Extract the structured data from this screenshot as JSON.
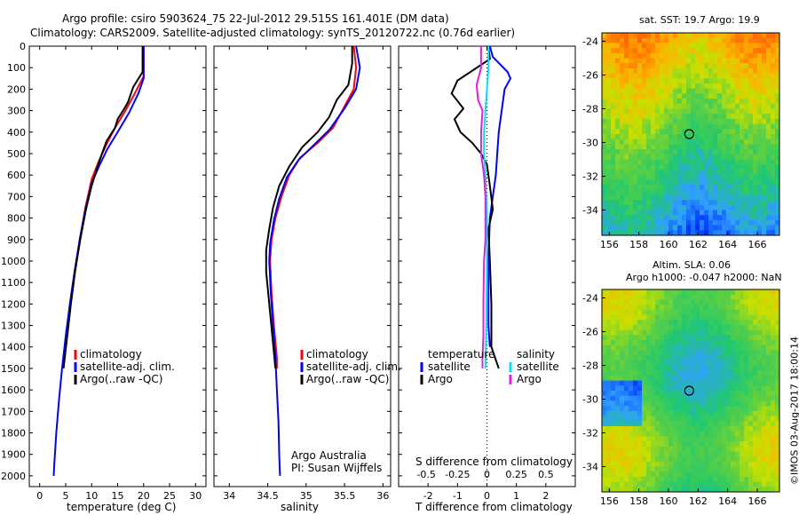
{
  "header": {
    "line1": "Argo profile: csiro 5903624_75 22-Jul-2012 29.515S 161.401E (DM data)",
    "line2": "Climatology: CARS2009. Satellite-adjusted climatology: synTS_20120722.nc (0.76d earlier)"
  },
  "colors": {
    "climatology": "#ff0000",
    "satellite": "#0000ff",
    "argo": "#000000",
    "sal_satellite": "#00e0ff",
    "sal_argo": "#e020e0"
  },
  "chart_data": [
    {
      "type": "line",
      "id": "temperature",
      "xlabel": "temperature (deg C)",
      "xlim": [
        -2,
        32
      ],
      "xticks": [
        0,
        5,
        10,
        15,
        20,
        25,
        30
      ],
      "ylim": [
        0,
        2050
      ],
      "yticks": [
        0,
        100,
        200,
        300,
        400,
        500,
        600,
        700,
        800,
        900,
        1000,
        1100,
        1200,
        1300,
        1400,
        1500,
        1600,
        1700,
        1800,
        1900,
        2000
      ],
      "legend": [
        "climatology",
        "satellite-adj. clim.",
        "Argo(..raw -QC)"
      ],
      "series": [
        {
          "name": "climatology",
          "color": "#ff0000",
          "points": [
            [
              20,
              0
            ],
            [
              20,
              140
            ],
            [
              18.3,
              220
            ],
            [
              16.5,
              300
            ],
            [
              14.5,
              380
            ],
            [
              12.8,
              460
            ],
            [
              11.3,
              540
            ],
            [
              10,
              620
            ],
            [
              8.8,
              750
            ],
            [
              7.7,
              900
            ],
            [
              6.8,
              1050
            ],
            [
              6,
              1200
            ],
            [
              5.3,
              1350
            ],
            [
              4.5,
              1500
            ]
          ]
        },
        {
          "name": "satellite-adj. clim.",
          "color": "#0000ff",
          "points": [
            [
              20,
              0
            ],
            [
              20,
              150
            ],
            [
              19,
              220
            ],
            [
              17.2,
              310
            ],
            [
              15,
              400
            ],
            [
              13,
              480
            ],
            [
              11.4,
              560
            ],
            [
              10,
              640
            ],
            [
              8.8,
              760
            ],
            [
              7.7,
              900
            ],
            [
              6.7,
              1050
            ],
            [
              5.8,
              1200
            ],
            [
              5,
              1350
            ],
            [
              4.3,
              1500
            ],
            [
              3.7,
              1650
            ],
            [
              3.2,
              1800
            ],
            [
              2.8,
              1950
            ],
            [
              2.7,
              2000
            ]
          ]
        },
        {
          "name": "Argo(..raw -QC)",
          "color": "#000000",
          "points": [
            [
              19.8,
              0
            ],
            [
              19.8,
              120
            ],
            [
              18,
              190
            ],
            [
              17,
              260
            ],
            [
              16.3,
              290
            ],
            [
              15,
              340
            ],
            [
              14.5,
              380
            ],
            [
              12.9,
              440
            ],
            [
              12,
              500
            ],
            [
              11,
              570
            ],
            [
              10,
              650
            ],
            [
              8.9,
              760
            ],
            [
              7.8,
              900
            ],
            [
              6.8,
              1050
            ],
            [
              6,
              1200
            ],
            [
              5.3,
              1350
            ],
            [
              4.6,
              1500
            ]
          ]
        }
      ]
    },
    {
      "type": "line",
      "id": "salinity",
      "xlabel": "salinity",
      "xlim": [
        33.8,
        36.1
      ],
      "xticks": [
        34,
        34.5,
        35,
        35.5,
        36
      ],
      "ylim": [
        0,
        2050
      ],
      "legend": [
        "climatology",
        "satellite-adj. clim.",
        "Argo(..raw -QC)"
      ],
      "annotation": [
        "Argo Australia",
        "PI: Susan Wijffels"
      ],
      "series": [
        {
          "name": "climatology",
          "color": "#ff0000",
          "points": [
            [
              35.62,
              0
            ],
            [
              35.65,
              100
            ],
            [
              35.62,
              200
            ],
            [
              35.5,
              280
            ],
            [
              35.35,
              380
            ],
            [
              35.15,
              450
            ],
            [
              34.92,
              520
            ],
            [
              34.78,
              600
            ],
            [
              34.68,
              700
            ],
            [
              34.6,
              800
            ],
            [
              34.55,
              900
            ],
            [
              34.53,
              1000
            ],
            [
              34.55,
              1150
            ],
            [
              34.58,
              1300
            ],
            [
              34.62,
              1450
            ],
            [
              34.62,
              1500
            ]
          ]
        },
        {
          "name": "satellite-adj. clim.",
          "color": "#0000ff",
          "points": [
            [
              35.65,
              0
            ],
            [
              35.7,
              100
            ],
            [
              35.65,
              200
            ],
            [
              35.5,
              290
            ],
            [
              35.3,
              390
            ],
            [
              35.1,
              460
            ],
            [
              34.9,
              530
            ],
            [
              34.75,
              610
            ],
            [
              34.65,
              710
            ],
            [
              34.58,
              810
            ],
            [
              34.53,
              920
            ],
            [
              34.52,
              1000
            ],
            [
              34.54,
              1150
            ],
            [
              34.57,
              1300
            ],
            [
              34.6,
              1450
            ],
            [
              34.62,
              1600
            ],
            [
              34.64,
              1750
            ],
            [
              34.65,
              1900
            ],
            [
              34.66,
              2000
            ]
          ]
        },
        {
          "name": "Argo(..raw -QC)",
          "color": "#000000",
          "points": [
            [
              35.6,
              0
            ],
            [
              35.6,
              80
            ],
            [
              35.55,
              180
            ],
            [
              35.4,
              250
            ],
            [
              35.3,
              330
            ],
            [
              35.15,
              400
            ],
            [
              34.95,
              470
            ],
            [
              34.78,
              560
            ],
            [
              34.65,
              650
            ],
            [
              34.57,
              750
            ],
            [
              34.52,
              850
            ],
            [
              34.48,
              950
            ],
            [
              34.48,
              1050
            ],
            [
              34.52,
              1200
            ],
            [
              34.56,
              1350
            ],
            [
              34.6,
              1500
            ]
          ]
        }
      ]
    },
    {
      "type": "line",
      "id": "difference",
      "xlabel": "T difference from climatology",
      "xlabel_top": "S difference from climatology",
      "xlim": [
        -3,
        3
      ],
      "xticks": [
        -2,
        -1,
        0,
        1,
        2
      ],
      "xticks_top": [
        "-0.5",
        "-0.25",
        "0",
        "0.25",
        "0.5"
      ],
      "ylim": [
        0,
        2050
      ],
      "legend_temperature": {
        "title": "temperature",
        "items": [
          "satellite",
          "Argo"
        ]
      },
      "legend_salinity": {
        "title": "salinity",
        "items": [
          "satellite",
          "Argo"
        ]
      },
      "series": [
        {
          "name": "temperature satellite",
          "color": "#0000ff",
          "points": [
            [
              0.1,
              0
            ],
            [
              0.2,
              50
            ],
            [
              0.7,
              120
            ],
            [
              0.8,
              150
            ],
            [
              0.6,
              200
            ],
            [
              0.5,
              300
            ],
            [
              0.4,
              400
            ],
            [
              0.35,
              500
            ],
            [
              0.3,
              600
            ],
            [
              0.2,
              700
            ],
            [
              0.1,
              800
            ],
            [
              0.05,
              1000
            ],
            [
              0.05,
              1300
            ],
            [
              0.1,
              1400
            ]
          ]
        },
        {
          "name": "temperature Argo",
          "color": "#000000",
          "points": [
            [
              0.05,
              0
            ],
            [
              0.1,
              60
            ],
            [
              -1,
              160
            ],
            [
              -1.2,
              220
            ],
            [
              -0.8,
              290
            ],
            [
              -1.1,
              340
            ],
            [
              -0.9,
              400
            ],
            [
              -0.5,
              450
            ],
            [
              -0.2,
              500
            ],
            [
              0,
              550
            ],
            [
              0.1,
              650
            ],
            [
              0.2,
              760
            ],
            [
              0.05,
              850
            ],
            [
              0.1,
              1000
            ],
            [
              0.15,
              1200
            ],
            [
              0.15,
              1400
            ],
            [
              0.4,
              1500
            ]
          ]
        },
        {
          "name": "salinity satellite",
          "color": "#00e0ff",
          "points": [
            [
              0.05,
              0
            ],
            [
              0.05,
              100
            ],
            [
              0,
              200
            ],
            [
              -0.05,
              300
            ],
            [
              -0.1,
              400
            ],
            [
              -0.1,
              500
            ],
            [
              -0.05,
              600
            ],
            [
              0,
              800
            ],
            [
              0,
              1000
            ],
            [
              -0.02,
              1300
            ],
            [
              -0.05,
              1500
            ]
          ]
        },
        {
          "name": "salinity Argo",
          "color": "#e020e0",
          "points": [
            [
              -0.2,
              0
            ],
            [
              -0.2,
              100
            ],
            [
              -0.35,
              180
            ],
            [
              -0.3,
              250
            ],
            [
              -0.15,
              300
            ],
            [
              -0.2,
              400
            ],
            [
              -0.2,
              500
            ],
            [
              -0.1,
              600
            ],
            [
              -0.05,
              700
            ],
            [
              -0.05,
              800
            ],
            [
              -0.05,
              900
            ],
            [
              -0.1,
              1000
            ],
            [
              -0.12,
              1200
            ],
            [
              -0.12,
              1350
            ],
            [
              -0.15,
              1450
            ],
            [
              -0.15,
              1500
            ]
          ]
        }
      ]
    },
    {
      "type": "heatmap",
      "id": "sst_map",
      "title": "sat. SST: 19.7  Argo: 19.9",
      "xticks": [
        156,
        158,
        160,
        162,
        164,
        166
      ],
      "yticks": [
        -24,
        -26,
        -28,
        -30,
        -32,
        -34
      ],
      "xlim": [
        155.5,
        167.5
      ],
      "ylim": [
        -35.5,
        -23.5
      ],
      "marker": {
        "lon": 161.4,
        "lat": -29.5
      }
    },
    {
      "type": "heatmap",
      "id": "sla_map",
      "title": "Altim. SLA: 0.06",
      "subtitle": "Argo h1000: -0.047 h2000: NaN",
      "xticks": [
        156,
        158,
        160,
        162,
        164,
        166
      ],
      "yticks": [
        -24,
        -26,
        -28,
        -30,
        -32,
        -34
      ],
      "xlim": [
        155.5,
        167.5
      ],
      "ylim": [
        -35.5,
        -23.5
      ],
      "marker": {
        "lon": 161.4,
        "lat": -29.5
      }
    }
  ],
  "footer": {
    "stamp": "©IMOS 03-Aug-2017 18:00:14"
  }
}
